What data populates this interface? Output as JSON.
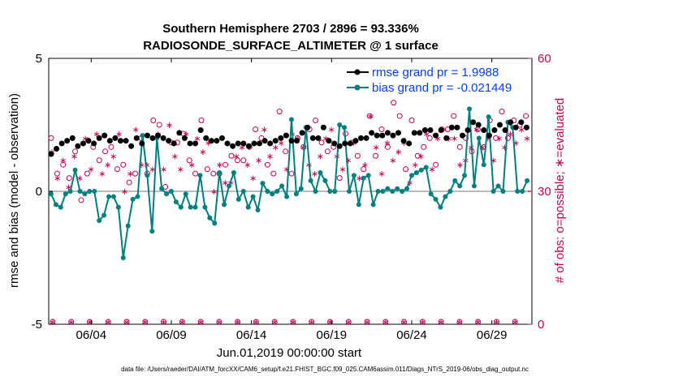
{
  "chart_data": {
    "type": "line",
    "title": "Southern Hemisphere 2703 / 2896 = 93.336%",
    "subtitle": "RADIOSONDE_SURFACE_ALTIMETER @ 1 surface",
    "ylabel_left": "rmse and bias (model - observation)",
    "ylabel_right": "# of obs: o=possible; ∗=evaluated",
    "xlabel": "Jun.01,2019 00:00:00 start",
    "footer": "data file: /Users/raeder/DAI/ATM_forcXX/CAM6_setup/f.e21.FHIST_BGC.f09_025.CAM6assim.011/Diags_NTrS_2019-06/obs_diag_output.nc",
    "ylim_left": [
      -5,
      5
    ],
    "ylim_right": [
      0,
      60
    ],
    "xlim": [
      1.35,
      31.5
    ],
    "left_ticks": [
      "5",
      "0",
      "-5"
    ],
    "right_ticks": [
      "60",
      "30",
      "0"
    ],
    "x_tick_labels": [
      "06/04",
      "06/09",
      "06/14",
      "06/19",
      "06/24",
      "06/29"
    ],
    "x_tick_values": [
      4,
      9,
      14,
      19,
      24,
      29
    ],
    "colors": {
      "rmse": "#000000",
      "bias": "#008080",
      "obs": "#cc0055",
      "zero_line": "#bbbbbb",
      "legend_text": "#0040ff"
    },
    "series": [
      {
        "name": "rmse grand pr = 1.9988",
        "values": [
          1.4,
          1.6,
          1.8,
          1.9,
          2.0,
          1.7,
          1.8,
          1.9,
          1.8,
          2.0,
          2.1,
          1.9,
          2.0,
          1.9,
          1.9,
          1.7,
          2.0,
          1.8,
          2.1,
          2.0,
          2.1,
          2.0,
          1.9,
          1.8,
          2.2,
          2.0,
          1.8,
          1.8,
          2.3,
          2.0,
          1.9,
          1.9,
          2.0,
          1.8,
          1.7,
          1.8,
          1.8,
          1.7,
          1.8,
          1.8,
          1.9,
          1.8,
          1.9,
          2.0,
          2.1,
          1.9,
          1.9,
          2.2,
          2.4,
          2.0,
          2.0,
          2.4,
          1.9,
          1.8,
          1.7,
          1.8,
          1.8,
          1.9,
          2.0,
          2.0,
          2.2,
          2.1,
          2.1,
          2.2,
          2.1,
          2.2,
          1.9,
          1.8,
          2.2,
          2.2,
          2.3,
          2.3,
          2.1,
          2.3,
          2.0,
          2.4,
          2.4,
          2.1,
          2.3,
          2.6,
          2.5,
          2.3,
          2.1,
          2.3,
          2.5,
          2.3,
          2.6,
          2.4,
          2.6,
          2.4
        ]
      },
      {
        "name": "bias grand pr = -0.021449",
        "values": [
          -0.1,
          -0.5,
          -0.6,
          -0.1,
          0.0,
          0.8,
          0.0,
          -0.1,
          0.0,
          0.0,
          -1.1,
          -0.9,
          -0.2,
          -0.2,
          -0.6,
          -2.5,
          -1.3,
          -0.3,
          -0.2,
          2.1,
          0.6,
          -1.5,
          2.0,
          0.1,
          -0.1,
          0.0,
          -0.4,
          -0.6,
          -0.1,
          -0.6,
          -0.6,
          0.6,
          -0.6,
          -1.0,
          -1.2,
          0.7,
          -0.5,
          0.2,
          0.7,
          -0.3,
          0.0,
          -0.6,
          -0.2,
          -0.7,
          0.3,
          0.0,
          -0.1,
          0.0,
          0.2,
          -0.2,
          2.7,
          -0.1,
          0.1,
          2.4,
          0.4,
          0.0,
          0.7,
          0.4,
          0.0,
          0.0,
          2.5,
          2.4,
          0.0,
          0.6,
          -0.5,
          0.5,
          0.6,
          -0.5,
          0.0,
          0.0,
          0.1,
          0.0,
          0.1,
          0.0,
          0.1,
          0.6,
          0.7,
          0.8,
          0.9,
          -0.1,
          -0.3,
          -0.6,
          -0.2,
          0.0,
          0.4,
          0.2,
          0.6,
          3.1,
          0.2,
          2.0,
          1.0,
          2.8,
          0.0,
          0.2,
          0.0,
          2.6,
          2.4,
          0.0,
          0.0,
          0.4
        ]
      },
      {
        "name": "possible",
        "values": [
          42,
          34,
          36,
          33,
          39,
          28,
          34,
          40,
          37,
          39,
          40,
          35,
          36,
          32,
          34,
          42,
          34,
          46,
          45,
          31,
          41,
          41,
          43,
          37,
          34,
          46,
          35,
          34,
          34,
          36,
          38,
          37,
          37,
          40,
          44,
          42,
          36,
          34,
          48,
          39,
          34,
          42,
          40,
          44,
          46,
          41,
          39,
          40,
          33,
          43,
          41,
          38,
          35,
          47,
          38,
          44,
          40,
          50,
          47,
          35,
          46,
          38,
          40,
          42,
          36,
          44,
          44,
          47,
          40,
          42,
          39,
          44,
          40,
          46,
          42,
          48,
          42,
          46,
          45,
          47
        ]
      },
      {
        "name": "evaluated",
        "values": [
          39,
          33,
          37,
          31,
          38,
          33,
          42,
          35,
          43,
          34,
          36,
          38,
          43,
          30,
          34,
          44,
          36,
          36,
          35,
          43,
          35,
          45,
          38,
          35,
          43,
          36,
          42,
          39,
          41,
          30,
          36,
          32,
          32,
          38,
          40,
          36,
          33,
          37,
          44,
          38,
          40,
          41,
          35,
          43,
          42,
          40,
          36,
          34,
          38,
          42,
          44,
          38,
          35,
          37,
          41,
          33,
          36,
          47,
          40,
          34,
          41,
          37,
          39,
          41,
          32,
          36,
          38,
          43,
          35,
          42,
          44,
          42,
          42,
          36,
          37,
          40,
          44,
          40,
          42,
          37,
          42,
          40,
          43,
          41,
          44,
          42
        ]
      }
    ]
  }
}
